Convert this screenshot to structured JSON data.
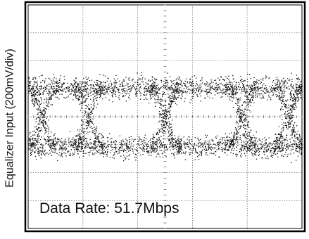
{
  "chart_data": {
    "type": "scatter",
    "subtype": "eye-diagram",
    "title": "",
    "xlabel": "",
    "ylabel": "Equalizer Input (200mV/div)",
    "annotations": [
      "Data Rate: 51.7Mbps"
    ],
    "divisions": {
      "x": 10,
      "y": 8
    },
    "xlim": [
      0,
      10
    ],
    "ylim": [
      -4,
      4
    ],
    "grid": true,
    "trace_color": "#111111",
    "frame_color": "#000000",
    "grid_color": "#555555",
    "eye": {
      "high_level_divs": 1.05,
      "low_level_divs": -1.05,
      "band_halfwidth_divs": 0.35,
      "crossings_at_divs": [
        0.5,
        2.2,
        5.0,
        7.8,
        9.5
      ],
      "eye_openings": [
        {
          "from": 2.2,
          "to": 5.0
        },
        {
          "from": 5.0,
          "to": 7.8
        }
      ]
    }
  }
}
